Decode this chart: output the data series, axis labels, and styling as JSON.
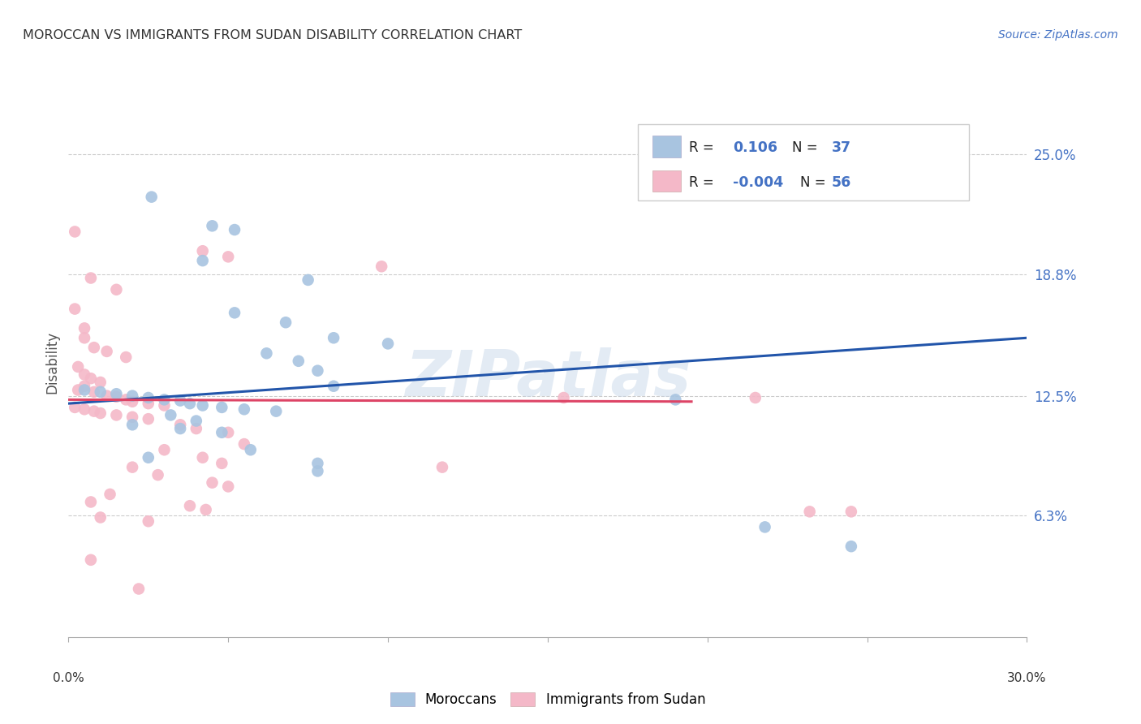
{
  "title": "MOROCCAN VS IMMIGRANTS FROM SUDAN DISABILITY CORRELATION CHART",
  "source": "Source: ZipAtlas.com",
  "ylabel": "Disability",
  "ytick_labels": [
    "25.0%",
    "18.8%",
    "12.5%",
    "6.3%"
  ],
  "ytick_values": [
    0.25,
    0.188,
    0.125,
    0.063
  ],
  "xlim": [
    0.0,
    0.3
  ],
  "ylim": [
    0.0,
    0.285
  ],
  "legend_label1": "Moroccans",
  "legend_label2": "Immigrants from Sudan",
  "r1": "0.106",
  "n1": "37",
  "r2": "-0.004",
  "n2": "56",
  "watermark": "ZIPatlas",
  "blue_color": "#a8c4e0",
  "pink_color": "#f4b8c8",
  "blue_line_color": "#2255aa",
  "pink_line_color": "#dd4466",
  "background_color": "#ffffff",
  "grid_color": "#cccccc",
  "blue_line_x0": 0.0,
  "blue_line_y0": 0.121,
  "blue_line_x1": 0.3,
  "blue_line_y1": 0.155,
  "pink_line_x0": 0.0,
  "pink_line_y0": 0.123,
  "pink_line_x1": 0.195,
  "pink_line_y1": 0.122,
  "blue_scatter": [
    [
      0.026,
      0.228
    ],
    [
      0.045,
      0.213
    ],
    [
      0.052,
      0.211
    ],
    [
      0.042,
      0.195
    ],
    [
      0.075,
      0.185
    ],
    [
      0.052,
      0.168
    ],
    [
      0.068,
      0.163
    ],
    [
      0.083,
      0.155
    ],
    [
      0.1,
      0.152
    ],
    [
      0.062,
      0.147
    ],
    [
      0.072,
      0.143
    ],
    [
      0.078,
      0.138
    ],
    [
      0.083,
      0.13
    ],
    [
      0.005,
      0.128
    ],
    [
      0.01,
      0.127
    ],
    [
      0.015,
      0.126
    ],
    [
      0.02,
      0.125
    ],
    [
      0.025,
      0.124
    ],
    [
      0.03,
      0.123
    ],
    [
      0.035,
      0.1225
    ],
    [
      0.038,
      0.121
    ],
    [
      0.042,
      0.12
    ],
    [
      0.048,
      0.119
    ],
    [
      0.055,
      0.118
    ],
    [
      0.065,
      0.117
    ],
    [
      0.032,
      0.115
    ],
    [
      0.04,
      0.112
    ],
    [
      0.02,
      0.11
    ],
    [
      0.035,
      0.108
    ],
    [
      0.048,
      0.106
    ],
    [
      0.057,
      0.097
    ],
    [
      0.025,
      0.093
    ],
    [
      0.078,
      0.09
    ],
    [
      0.078,
      0.086
    ],
    [
      0.19,
      0.123
    ],
    [
      0.218,
      0.057
    ],
    [
      0.245,
      0.047
    ]
  ],
  "pink_scatter": [
    [
      0.002,
      0.21
    ],
    [
      0.042,
      0.2
    ],
    [
      0.05,
      0.197
    ],
    [
      0.098,
      0.192
    ],
    [
      0.007,
      0.186
    ],
    [
      0.015,
      0.18
    ],
    [
      0.002,
      0.17
    ],
    [
      0.005,
      0.16
    ],
    [
      0.005,
      0.155
    ],
    [
      0.008,
      0.15
    ],
    [
      0.012,
      0.148
    ],
    [
      0.018,
      0.145
    ],
    [
      0.003,
      0.14
    ],
    [
      0.005,
      0.136
    ],
    [
      0.007,
      0.134
    ],
    [
      0.01,
      0.132
    ],
    [
      0.005,
      0.13
    ],
    [
      0.003,
      0.128
    ],
    [
      0.008,
      0.127
    ],
    [
      0.012,
      0.125
    ],
    [
      0.015,
      0.1245
    ],
    [
      0.018,
      0.123
    ],
    [
      0.02,
      0.122
    ],
    [
      0.025,
      0.121
    ],
    [
      0.03,
      0.12
    ],
    [
      0.002,
      0.119
    ],
    [
      0.005,
      0.118
    ],
    [
      0.008,
      0.117
    ],
    [
      0.01,
      0.116
    ],
    [
      0.015,
      0.115
    ],
    [
      0.02,
      0.114
    ],
    [
      0.025,
      0.113
    ],
    [
      0.035,
      0.11
    ],
    [
      0.04,
      0.108
    ],
    [
      0.05,
      0.106
    ],
    [
      0.055,
      0.1
    ],
    [
      0.03,
      0.097
    ],
    [
      0.042,
      0.093
    ],
    [
      0.048,
      0.09
    ],
    [
      0.02,
      0.088
    ],
    [
      0.028,
      0.084
    ],
    [
      0.045,
      0.08
    ],
    [
      0.05,
      0.078
    ],
    [
      0.013,
      0.074
    ],
    [
      0.007,
      0.07
    ],
    [
      0.038,
      0.068
    ],
    [
      0.043,
      0.066
    ],
    [
      0.01,
      0.062
    ],
    [
      0.025,
      0.06
    ],
    [
      0.007,
      0.04
    ],
    [
      0.022,
      0.025
    ],
    [
      0.117,
      0.088
    ],
    [
      0.155,
      0.124
    ],
    [
      0.215,
      0.124
    ],
    [
      0.232,
      0.065
    ],
    [
      0.245,
      0.065
    ]
  ]
}
